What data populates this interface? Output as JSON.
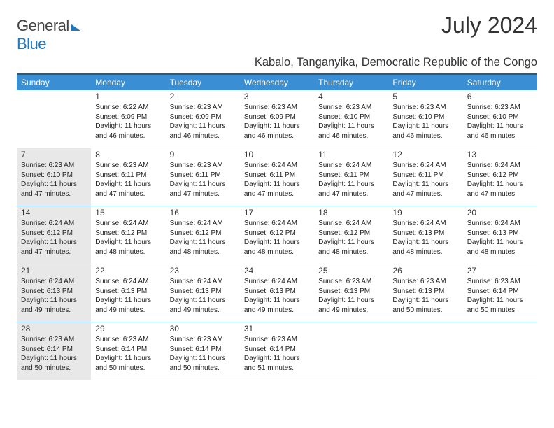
{
  "logo": {
    "part1": "General",
    "part2": "Blue"
  },
  "title": "July 2024",
  "location": "Kabalo, Tanganyika, Democratic Republic of the Congo",
  "colors": {
    "header_bg": "#3a8fd4",
    "border": "#1a5d8f",
    "shade_bg": "#e8e8e8",
    "text": "#222222",
    "logo_blue": "#2178bd"
  },
  "weekdays": [
    "Sunday",
    "Monday",
    "Tuesday",
    "Wednesday",
    "Thursday",
    "Friday",
    "Saturday"
  ],
  "weeks": [
    [
      {
        "n": "",
        "sunrise": "",
        "sunset": "",
        "daylight": "",
        "shade": false
      },
      {
        "n": "1",
        "sunrise": "Sunrise: 6:22 AM",
        "sunset": "Sunset: 6:09 PM",
        "daylight": "Daylight: 11 hours and 46 minutes.",
        "shade": false
      },
      {
        "n": "2",
        "sunrise": "Sunrise: 6:23 AM",
        "sunset": "Sunset: 6:09 PM",
        "daylight": "Daylight: 11 hours and 46 minutes.",
        "shade": false
      },
      {
        "n": "3",
        "sunrise": "Sunrise: 6:23 AM",
        "sunset": "Sunset: 6:09 PM",
        "daylight": "Daylight: 11 hours and 46 minutes.",
        "shade": false
      },
      {
        "n": "4",
        "sunrise": "Sunrise: 6:23 AM",
        "sunset": "Sunset: 6:10 PM",
        "daylight": "Daylight: 11 hours and 46 minutes.",
        "shade": false
      },
      {
        "n": "5",
        "sunrise": "Sunrise: 6:23 AM",
        "sunset": "Sunset: 6:10 PM",
        "daylight": "Daylight: 11 hours and 46 minutes.",
        "shade": false
      },
      {
        "n": "6",
        "sunrise": "Sunrise: 6:23 AM",
        "sunset": "Sunset: 6:10 PM",
        "daylight": "Daylight: 11 hours and 46 minutes.",
        "shade": false
      }
    ],
    [
      {
        "n": "7",
        "sunrise": "Sunrise: 6:23 AM",
        "sunset": "Sunset: 6:10 PM",
        "daylight": "Daylight: 11 hours and 47 minutes.",
        "shade": true
      },
      {
        "n": "8",
        "sunrise": "Sunrise: 6:23 AM",
        "sunset": "Sunset: 6:11 PM",
        "daylight": "Daylight: 11 hours and 47 minutes.",
        "shade": false
      },
      {
        "n": "9",
        "sunrise": "Sunrise: 6:23 AM",
        "sunset": "Sunset: 6:11 PM",
        "daylight": "Daylight: 11 hours and 47 minutes.",
        "shade": false
      },
      {
        "n": "10",
        "sunrise": "Sunrise: 6:24 AM",
        "sunset": "Sunset: 6:11 PM",
        "daylight": "Daylight: 11 hours and 47 minutes.",
        "shade": false
      },
      {
        "n": "11",
        "sunrise": "Sunrise: 6:24 AM",
        "sunset": "Sunset: 6:11 PM",
        "daylight": "Daylight: 11 hours and 47 minutes.",
        "shade": false
      },
      {
        "n": "12",
        "sunrise": "Sunrise: 6:24 AM",
        "sunset": "Sunset: 6:11 PM",
        "daylight": "Daylight: 11 hours and 47 minutes.",
        "shade": false
      },
      {
        "n": "13",
        "sunrise": "Sunrise: 6:24 AM",
        "sunset": "Sunset: 6:12 PM",
        "daylight": "Daylight: 11 hours and 47 minutes.",
        "shade": false
      }
    ],
    [
      {
        "n": "14",
        "sunrise": "Sunrise: 6:24 AM",
        "sunset": "Sunset: 6:12 PM",
        "daylight": "Daylight: 11 hours and 47 minutes.",
        "shade": true
      },
      {
        "n": "15",
        "sunrise": "Sunrise: 6:24 AM",
        "sunset": "Sunset: 6:12 PM",
        "daylight": "Daylight: 11 hours and 48 minutes.",
        "shade": false
      },
      {
        "n": "16",
        "sunrise": "Sunrise: 6:24 AM",
        "sunset": "Sunset: 6:12 PM",
        "daylight": "Daylight: 11 hours and 48 minutes.",
        "shade": false
      },
      {
        "n": "17",
        "sunrise": "Sunrise: 6:24 AM",
        "sunset": "Sunset: 6:12 PM",
        "daylight": "Daylight: 11 hours and 48 minutes.",
        "shade": false
      },
      {
        "n": "18",
        "sunrise": "Sunrise: 6:24 AM",
        "sunset": "Sunset: 6:12 PM",
        "daylight": "Daylight: 11 hours and 48 minutes.",
        "shade": false
      },
      {
        "n": "19",
        "sunrise": "Sunrise: 6:24 AM",
        "sunset": "Sunset: 6:13 PM",
        "daylight": "Daylight: 11 hours and 48 minutes.",
        "shade": false
      },
      {
        "n": "20",
        "sunrise": "Sunrise: 6:24 AM",
        "sunset": "Sunset: 6:13 PM",
        "daylight": "Daylight: 11 hours and 48 minutes.",
        "shade": false
      }
    ],
    [
      {
        "n": "21",
        "sunrise": "Sunrise: 6:24 AM",
        "sunset": "Sunset: 6:13 PM",
        "daylight": "Daylight: 11 hours and 49 minutes.",
        "shade": true
      },
      {
        "n": "22",
        "sunrise": "Sunrise: 6:24 AM",
        "sunset": "Sunset: 6:13 PM",
        "daylight": "Daylight: 11 hours and 49 minutes.",
        "shade": false
      },
      {
        "n": "23",
        "sunrise": "Sunrise: 6:24 AM",
        "sunset": "Sunset: 6:13 PM",
        "daylight": "Daylight: 11 hours and 49 minutes.",
        "shade": false
      },
      {
        "n": "24",
        "sunrise": "Sunrise: 6:24 AM",
        "sunset": "Sunset: 6:13 PM",
        "daylight": "Daylight: 11 hours and 49 minutes.",
        "shade": false
      },
      {
        "n": "25",
        "sunrise": "Sunrise: 6:23 AM",
        "sunset": "Sunset: 6:13 PM",
        "daylight": "Daylight: 11 hours and 49 minutes.",
        "shade": false
      },
      {
        "n": "26",
        "sunrise": "Sunrise: 6:23 AM",
        "sunset": "Sunset: 6:13 PM",
        "daylight": "Daylight: 11 hours and 50 minutes.",
        "shade": false
      },
      {
        "n": "27",
        "sunrise": "Sunrise: 6:23 AM",
        "sunset": "Sunset: 6:14 PM",
        "daylight": "Daylight: 11 hours and 50 minutes.",
        "shade": false
      }
    ],
    [
      {
        "n": "28",
        "sunrise": "Sunrise: 6:23 AM",
        "sunset": "Sunset: 6:14 PM",
        "daylight": "Daylight: 11 hours and 50 minutes.",
        "shade": true
      },
      {
        "n": "29",
        "sunrise": "Sunrise: 6:23 AM",
        "sunset": "Sunset: 6:14 PM",
        "daylight": "Daylight: 11 hours and 50 minutes.",
        "shade": false
      },
      {
        "n": "30",
        "sunrise": "Sunrise: 6:23 AM",
        "sunset": "Sunset: 6:14 PM",
        "daylight": "Daylight: 11 hours and 50 minutes.",
        "shade": false
      },
      {
        "n": "31",
        "sunrise": "Sunrise: 6:23 AM",
        "sunset": "Sunset: 6:14 PM",
        "daylight": "Daylight: 11 hours and 51 minutes.",
        "shade": false
      },
      {
        "n": "",
        "sunrise": "",
        "sunset": "",
        "daylight": "",
        "shade": false
      },
      {
        "n": "",
        "sunrise": "",
        "sunset": "",
        "daylight": "",
        "shade": false
      },
      {
        "n": "",
        "sunrise": "",
        "sunset": "",
        "daylight": "",
        "shade": false
      }
    ]
  ]
}
